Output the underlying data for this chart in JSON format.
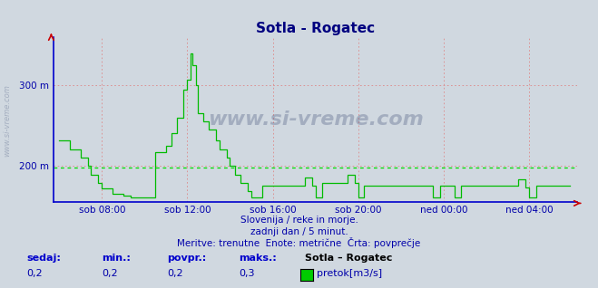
{
  "title": "Sotla - Rogatec",
  "title_color": "#000080",
  "bg_color": "#d0d8e0",
  "plot_bg_color": "#d0d8e0",
  "line_color": "#00bb00",
  "avg_line_color": "#00dd00",
  "axis_color": "#0000cc",
  "yticks": [
    200,
    300
  ],
  "ytick_labels": [
    "200 m",
    "300 m"
  ],
  "ylim": [
    155,
    360
  ],
  "avg_value": 197,
  "xtick_labels": [
    "sob 08:00",
    "sob 12:00",
    "sob 16:00",
    "sob 20:00",
    "ned 00:00",
    "ned 04:00"
  ],
  "watermark": "www.si-vreme.com",
  "sub_text1": "Slovenija / reke in morje.",
  "sub_text2": "zadnji dan / 5 minut.",
  "sub_text3": "Meritve: trenutne  Enote: metrične  Črta: povprečje",
  "footer_labels": [
    "sedaj:",
    "min.:",
    "povpr.:",
    "maks.:",
    "Sotla – Rogatec"
  ],
  "footer_values": [
    "0,2",
    "0,2",
    "0,2",
    "0,3"
  ],
  "legend_label": "pretok[m3/s]",
  "legend_color": "#00cc00",
  "n_points": 288
}
